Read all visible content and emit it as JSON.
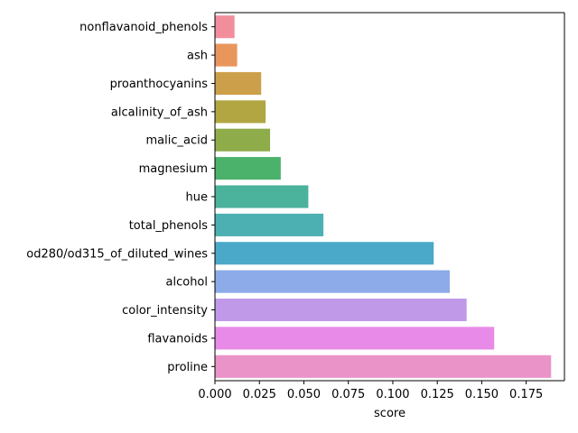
{
  "chart_data": {
    "type": "bar",
    "orientation": "horizontal",
    "categories": [
      "nonflavanoid_phenols",
      "ash",
      "proanthocyanins",
      "alcalinity_of_ash",
      "malic_acid",
      "magnesium",
      "hue",
      "total_phenols",
      "od280/od315_of_diluted_wines",
      "alcohol",
      "color_intensity",
      "flavanoids",
      "proline"
    ],
    "values": [
      0.011,
      0.0125,
      0.026,
      0.0285,
      0.031,
      0.037,
      0.0525,
      0.061,
      0.123,
      0.132,
      0.1415,
      0.157,
      0.189
    ],
    "colors": [
      "#f28e9c",
      "#e9965d",
      "#cca04a",
      "#b1a642",
      "#8fac4b",
      "#4bb26c",
      "#4bb29c",
      "#4cb0b2",
      "#4aa9c9",
      "#8cabe8",
      "#c09ae9",
      "#e88ae8",
      "#ea93c8"
    ],
    "title": "",
    "xlabel": "score",
    "ylabel": "",
    "xlim": [
      0,
      0.1965
    ],
    "xticks": [
      0.0,
      0.025,
      0.05,
      0.075,
      0.1,
      0.125,
      0.15,
      0.175
    ],
    "xtick_labels": [
      "0.000",
      "0.025",
      "0.050",
      "0.075",
      "0.100",
      "0.125",
      "0.150",
      "0.175"
    ],
    "grid": false,
    "legend": "none"
  }
}
